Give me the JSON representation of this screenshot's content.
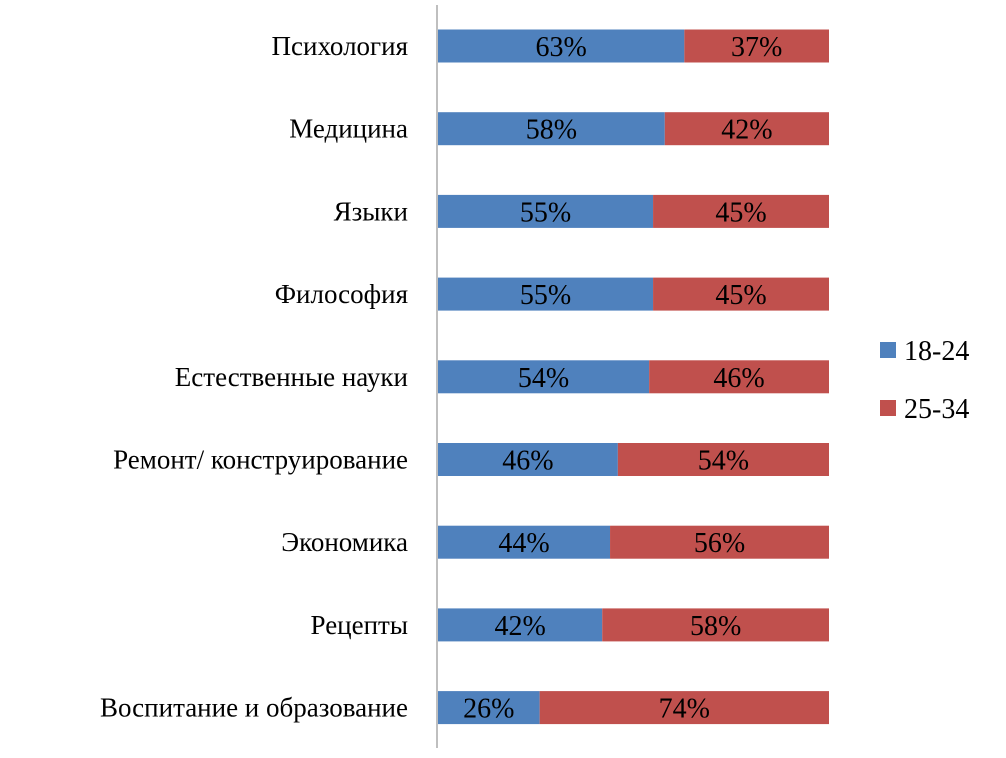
{
  "chart_data": {
    "type": "bar",
    "stacked": true,
    "orientation": "horizontal",
    "percent_stacked": true,
    "categories": [
      "Психология",
      "Медицина",
      "Языки",
      "Философия",
      "Естественные науки",
      "Ремонт/ конструирование",
      "Экономика",
      "Рецепты",
      "Воспитание и образование"
    ],
    "series": [
      {
        "name": "18-24",
        "color": "#4f81bd",
        "values": [
          63,
          58,
          55,
          55,
          54,
          46,
          44,
          42,
          26
        ]
      },
      {
        "name": "25-34",
        "color": "#c0504d",
        "values": [
          37,
          42,
          45,
          45,
          46,
          54,
          56,
          58,
          74
        ]
      }
    ],
    "xlim": [
      0,
      100
    ],
    "grid": false,
    "legend": "right",
    "title": "",
    "xlabel": "",
    "ylabel": ""
  }
}
